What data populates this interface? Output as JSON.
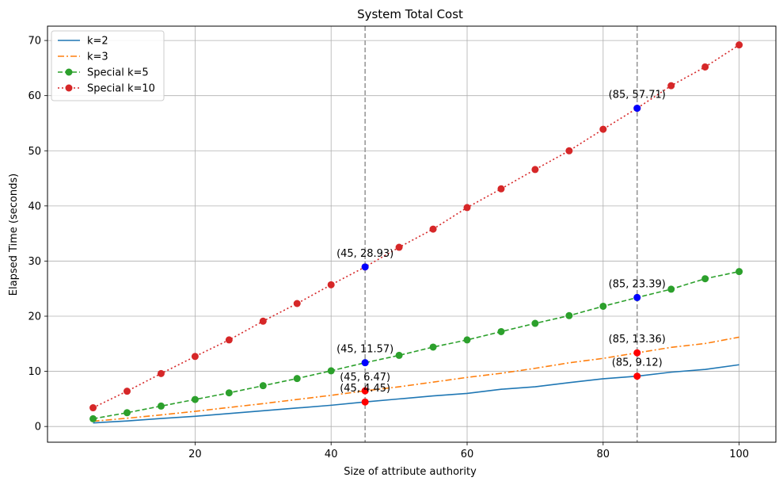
{
  "chart_data": {
    "type": "line",
    "title": "System Total Cost",
    "xlabel": "Size of attribute authority",
    "ylabel": "Elapsed Time (seconds)",
    "xlim": [
      0,
      105
    ],
    "ylim": [
      -3,
      73
    ],
    "xticks": [
      20,
      40,
      60,
      80,
      100
    ],
    "yticks": [
      0,
      10,
      20,
      30,
      40,
      50,
      60,
      70
    ],
    "grid": true,
    "legend_position": "top-left",
    "vertical_reference_lines": [
      45,
      85
    ],
    "series": [
      {
        "name": "k=2",
        "style": "solid",
        "color": "#1f77b4",
        "markers": false,
        "x": [
          5,
          10,
          15,
          20,
          25,
          30,
          35,
          40,
          45,
          50,
          55,
          60,
          65,
          70,
          75,
          80,
          85,
          90,
          95,
          100
        ],
        "values": [
          0.65,
          1.0,
          1.45,
          1.85,
          2.35,
          2.85,
          3.35,
          3.85,
          4.45,
          5.0,
          5.55,
          6.0,
          6.75,
          7.2,
          7.95,
          8.65,
          9.12,
          9.85,
          10.35,
          11.2
        ]
      },
      {
        "name": "k=3",
        "style": "dashdot",
        "color": "#ff7f0e",
        "markers": false,
        "x": [
          5,
          10,
          15,
          20,
          25,
          30,
          35,
          40,
          45,
          50,
          55,
          60,
          65,
          70,
          75,
          80,
          85,
          90,
          95,
          100
        ],
        "values": [
          0.95,
          1.5,
          2.1,
          2.75,
          3.45,
          4.15,
          4.9,
          5.65,
          6.47,
          7.2,
          8.05,
          8.9,
          9.65,
          10.55,
          11.55,
          12.35,
          13.36,
          14.35,
          15.05,
          16.2
        ]
      },
      {
        "name": "Special k=5",
        "style": "dashed",
        "color": "#2ca02c",
        "markers": true,
        "x": [
          5,
          10,
          15,
          20,
          25,
          30,
          35,
          40,
          45,
          50,
          55,
          60,
          65,
          70,
          75,
          80,
          85,
          90,
          95,
          100
        ],
        "values": [
          1.4,
          2.5,
          3.7,
          4.9,
          6.1,
          7.4,
          8.7,
          10.1,
          11.57,
          12.9,
          14.4,
          15.7,
          17.2,
          18.7,
          20.1,
          21.8,
          23.39,
          24.9,
          26.8,
          28.1
        ]
      },
      {
        "name": "Special k=10",
        "style": "dotted",
        "color": "#d62728",
        "markers": true,
        "x": [
          5,
          10,
          15,
          20,
          25,
          30,
          35,
          40,
          45,
          50,
          55,
          60,
          65,
          70,
          75,
          80,
          85,
          90,
          95,
          100
        ],
        "values": [
          3.4,
          6.4,
          9.6,
          12.7,
          15.7,
          19.1,
          22.3,
          25.7,
          28.93,
          32.5,
          35.8,
          39.7,
          43.1,
          46.6,
          50.0,
          53.9,
          57.71,
          61.8,
          65.2,
          69.2
        ]
      }
    ],
    "highlight_points": [
      {
        "x": 45,
        "y": 28.93,
        "color": "#0000ff",
        "label": "(45, 28.93)"
      },
      {
        "x": 85,
        "y": 57.71,
        "color": "#0000ff",
        "label": "(85, 57.71)"
      },
      {
        "x": 45,
        "y": 11.57,
        "color": "#0000ff",
        "label": "(45, 11.57)"
      },
      {
        "x": 85,
        "y": 23.39,
        "color": "#0000ff",
        "label": "(85, 23.39)"
      },
      {
        "x": 45,
        "y": 6.47,
        "color": "#ff0000",
        "label": "(45, 6.47)"
      },
      {
        "x": 85,
        "y": 13.36,
        "color": "#ff0000",
        "label": "(85, 13.36)"
      },
      {
        "x": 45,
        "y": 4.45,
        "color": "#ff0000",
        "label": "(45, 4.45)"
      },
      {
        "x": 85,
        "y": 9.12,
        "color": "#ff0000",
        "label": "(85, 9.12)"
      }
    ]
  }
}
